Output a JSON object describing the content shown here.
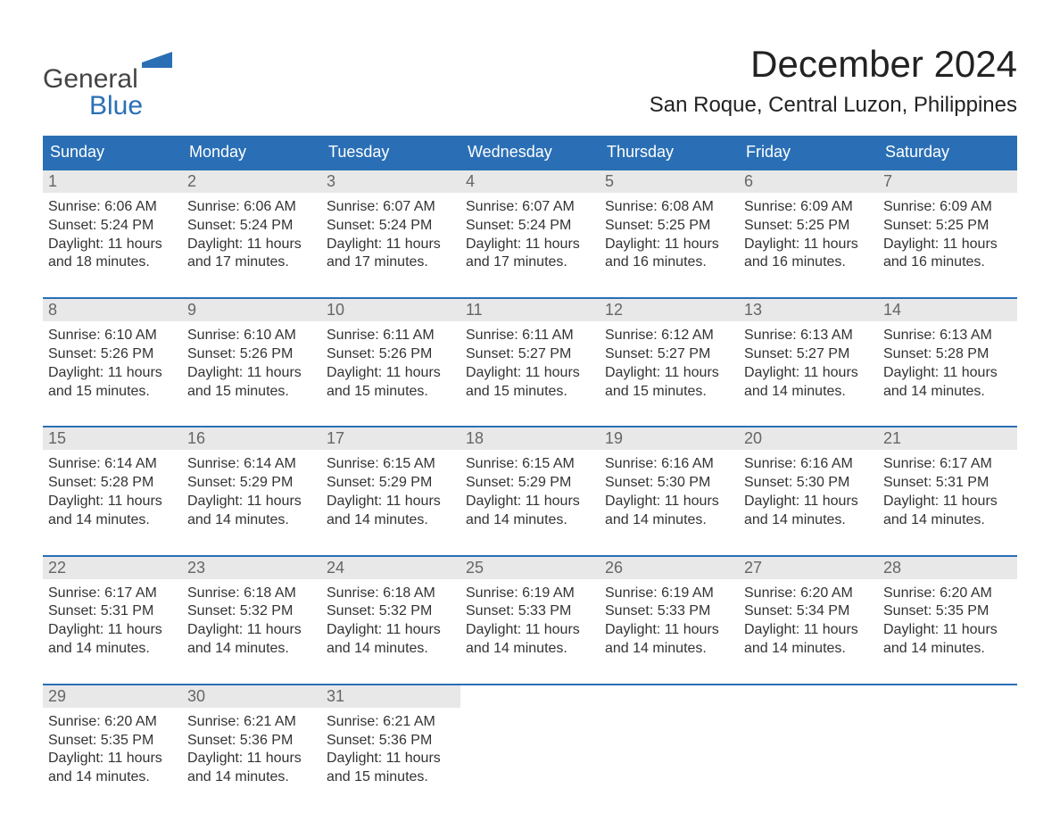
{
  "colors": {
    "brand_blue": "#2a6fb5",
    "header_bg": "#2a6fb5",
    "header_text": "#ffffff",
    "daynum_bg": "#e8e8e8",
    "daynum_text": "#666666",
    "page_bg": "#ffffff",
    "body_text": "#333333",
    "week_border": "#2a6fb5"
  },
  "logo": {
    "word1": "General",
    "word2": "Blue"
  },
  "title": "December 2024",
  "location": "San Roque, Central Luzon, Philippines",
  "days_of_week": [
    "Sunday",
    "Monday",
    "Tuesday",
    "Wednesday",
    "Thursday",
    "Friday",
    "Saturday"
  ],
  "weeks": [
    [
      {
        "date": "1",
        "sunrise": "Sunrise: 6:06 AM",
        "sunset": "Sunset: 5:24 PM",
        "daylight1": "Daylight: 11 hours",
        "daylight2": "and 18 minutes."
      },
      {
        "date": "2",
        "sunrise": "Sunrise: 6:06 AM",
        "sunset": "Sunset: 5:24 PM",
        "daylight1": "Daylight: 11 hours",
        "daylight2": "and 17 minutes."
      },
      {
        "date": "3",
        "sunrise": "Sunrise: 6:07 AM",
        "sunset": "Sunset: 5:24 PM",
        "daylight1": "Daylight: 11 hours",
        "daylight2": "and 17 minutes."
      },
      {
        "date": "4",
        "sunrise": "Sunrise: 6:07 AM",
        "sunset": "Sunset: 5:24 PM",
        "daylight1": "Daylight: 11 hours",
        "daylight2": "and 17 minutes."
      },
      {
        "date": "5",
        "sunrise": "Sunrise: 6:08 AM",
        "sunset": "Sunset: 5:25 PM",
        "daylight1": "Daylight: 11 hours",
        "daylight2": "and 16 minutes."
      },
      {
        "date": "6",
        "sunrise": "Sunrise: 6:09 AM",
        "sunset": "Sunset: 5:25 PM",
        "daylight1": "Daylight: 11 hours",
        "daylight2": "and 16 minutes."
      },
      {
        "date": "7",
        "sunrise": "Sunrise: 6:09 AM",
        "sunset": "Sunset: 5:25 PM",
        "daylight1": "Daylight: 11 hours",
        "daylight2": "and 16 minutes."
      }
    ],
    [
      {
        "date": "8",
        "sunrise": "Sunrise: 6:10 AM",
        "sunset": "Sunset: 5:26 PM",
        "daylight1": "Daylight: 11 hours",
        "daylight2": "and 15 minutes."
      },
      {
        "date": "9",
        "sunrise": "Sunrise: 6:10 AM",
        "sunset": "Sunset: 5:26 PM",
        "daylight1": "Daylight: 11 hours",
        "daylight2": "and 15 minutes."
      },
      {
        "date": "10",
        "sunrise": "Sunrise: 6:11 AM",
        "sunset": "Sunset: 5:26 PM",
        "daylight1": "Daylight: 11 hours",
        "daylight2": "and 15 minutes."
      },
      {
        "date": "11",
        "sunrise": "Sunrise: 6:11 AM",
        "sunset": "Sunset: 5:27 PM",
        "daylight1": "Daylight: 11 hours",
        "daylight2": "and 15 minutes."
      },
      {
        "date": "12",
        "sunrise": "Sunrise: 6:12 AM",
        "sunset": "Sunset: 5:27 PM",
        "daylight1": "Daylight: 11 hours",
        "daylight2": "and 15 minutes."
      },
      {
        "date": "13",
        "sunrise": "Sunrise: 6:13 AM",
        "sunset": "Sunset: 5:27 PM",
        "daylight1": "Daylight: 11 hours",
        "daylight2": "and 14 minutes."
      },
      {
        "date": "14",
        "sunrise": "Sunrise: 6:13 AM",
        "sunset": "Sunset: 5:28 PM",
        "daylight1": "Daylight: 11 hours",
        "daylight2": "and 14 minutes."
      }
    ],
    [
      {
        "date": "15",
        "sunrise": "Sunrise: 6:14 AM",
        "sunset": "Sunset: 5:28 PM",
        "daylight1": "Daylight: 11 hours",
        "daylight2": "and 14 minutes."
      },
      {
        "date": "16",
        "sunrise": "Sunrise: 6:14 AM",
        "sunset": "Sunset: 5:29 PM",
        "daylight1": "Daylight: 11 hours",
        "daylight2": "and 14 minutes."
      },
      {
        "date": "17",
        "sunrise": "Sunrise: 6:15 AM",
        "sunset": "Sunset: 5:29 PM",
        "daylight1": "Daylight: 11 hours",
        "daylight2": "and 14 minutes."
      },
      {
        "date": "18",
        "sunrise": "Sunrise: 6:15 AM",
        "sunset": "Sunset: 5:29 PM",
        "daylight1": "Daylight: 11 hours",
        "daylight2": "and 14 minutes."
      },
      {
        "date": "19",
        "sunrise": "Sunrise: 6:16 AM",
        "sunset": "Sunset: 5:30 PM",
        "daylight1": "Daylight: 11 hours",
        "daylight2": "and 14 minutes."
      },
      {
        "date": "20",
        "sunrise": "Sunrise: 6:16 AM",
        "sunset": "Sunset: 5:30 PM",
        "daylight1": "Daylight: 11 hours",
        "daylight2": "and 14 minutes."
      },
      {
        "date": "21",
        "sunrise": "Sunrise: 6:17 AM",
        "sunset": "Sunset: 5:31 PM",
        "daylight1": "Daylight: 11 hours",
        "daylight2": "and 14 minutes."
      }
    ],
    [
      {
        "date": "22",
        "sunrise": "Sunrise: 6:17 AM",
        "sunset": "Sunset: 5:31 PM",
        "daylight1": "Daylight: 11 hours",
        "daylight2": "and 14 minutes."
      },
      {
        "date": "23",
        "sunrise": "Sunrise: 6:18 AM",
        "sunset": "Sunset: 5:32 PM",
        "daylight1": "Daylight: 11 hours",
        "daylight2": "and 14 minutes."
      },
      {
        "date": "24",
        "sunrise": "Sunrise: 6:18 AM",
        "sunset": "Sunset: 5:32 PM",
        "daylight1": "Daylight: 11 hours",
        "daylight2": "and 14 minutes."
      },
      {
        "date": "25",
        "sunrise": "Sunrise: 6:19 AM",
        "sunset": "Sunset: 5:33 PM",
        "daylight1": "Daylight: 11 hours",
        "daylight2": "and 14 minutes."
      },
      {
        "date": "26",
        "sunrise": "Sunrise: 6:19 AM",
        "sunset": "Sunset: 5:33 PM",
        "daylight1": "Daylight: 11 hours",
        "daylight2": "and 14 minutes."
      },
      {
        "date": "27",
        "sunrise": "Sunrise: 6:20 AM",
        "sunset": "Sunset: 5:34 PM",
        "daylight1": "Daylight: 11 hours",
        "daylight2": "and 14 minutes."
      },
      {
        "date": "28",
        "sunrise": "Sunrise: 6:20 AM",
        "sunset": "Sunset: 5:35 PM",
        "daylight1": "Daylight: 11 hours",
        "daylight2": "and 14 minutes."
      }
    ],
    [
      {
        "date": "29",
        "sunrise": "Sunrise: 6:20 AM",
        "sunset": "Sunset: 5:35 PM",
        "daylight1": "Daylight: 11 hours",
        "daylight2": "and 14 minutes."
      },
      {
        "date": "30",
        "sunrise": "Sunrise: 6:21 AM",
        "sunset": "Sunset: 5:36 PM",
        "daylight1": "Daylight: 11 hours",
        "daylight2": "and 14 minutes."
      },
      {
        "date": "31",
        "sunrise": "Sunrise: 6:21 AM",
        "sunset": "Sunset: 5:36 PM",
        "daylight1": "Daylight: 11 hours",
        "daylight2": "and 15 minutes."
      },
      {
        "empty": true
      },
      {
        "empty": true
      },
      {
        "empty": true
      },
      {
        "empty": true
      }
    ]
  ]
}
